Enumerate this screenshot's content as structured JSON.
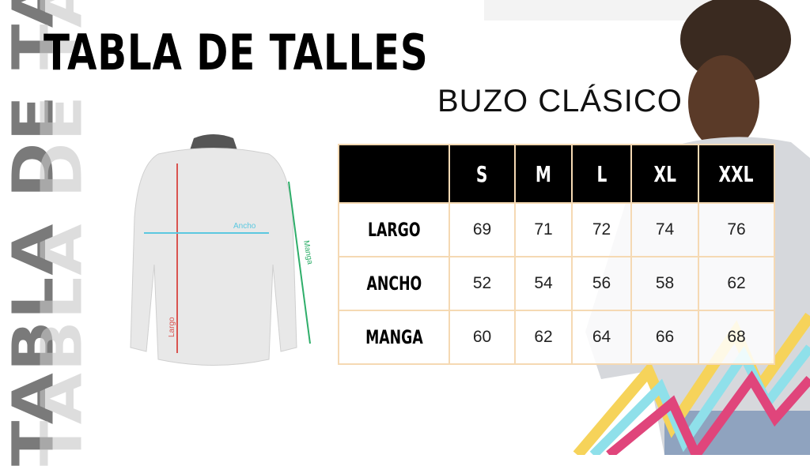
{
  "background_text": "TABLA DE TALLES",
  "title": "TABLA DE TALLES",
  "subtitle": "BUZO CLÁSICO",
  "diagram": {
    "ancho_label": "Ancho",
    "manga_label": "Manga",
    "largo_label": "Largo"
  },
  "colors": {
    "largo": "#d9534f",
    "ancho": "#5bc8e0",
    "manga": "#2fae6a",
    "table_border": "#f5d9b3",
    "header_bg": "#000000"
  },
  "table": {
    "sizes": [
      "S",
      "M",
      "L",
      "XL",
      "XXL"
    ],
    "rows": [
      {
        "label": "LARGO",
        "values": [
          "69",
          "71",
          "72",
          "74",
          "76"
        ]
      },
      {
        "label": "ANCHO",
        "values": [
          "52",
          "54",
          "56",
          "58",
          "62"
        ]
      },
      {
        "label": "MANGA",
        "values": [
          "60",
          "62",
          "64",
          "66",
          "68"
        ]
      }
    ]
  }
}
